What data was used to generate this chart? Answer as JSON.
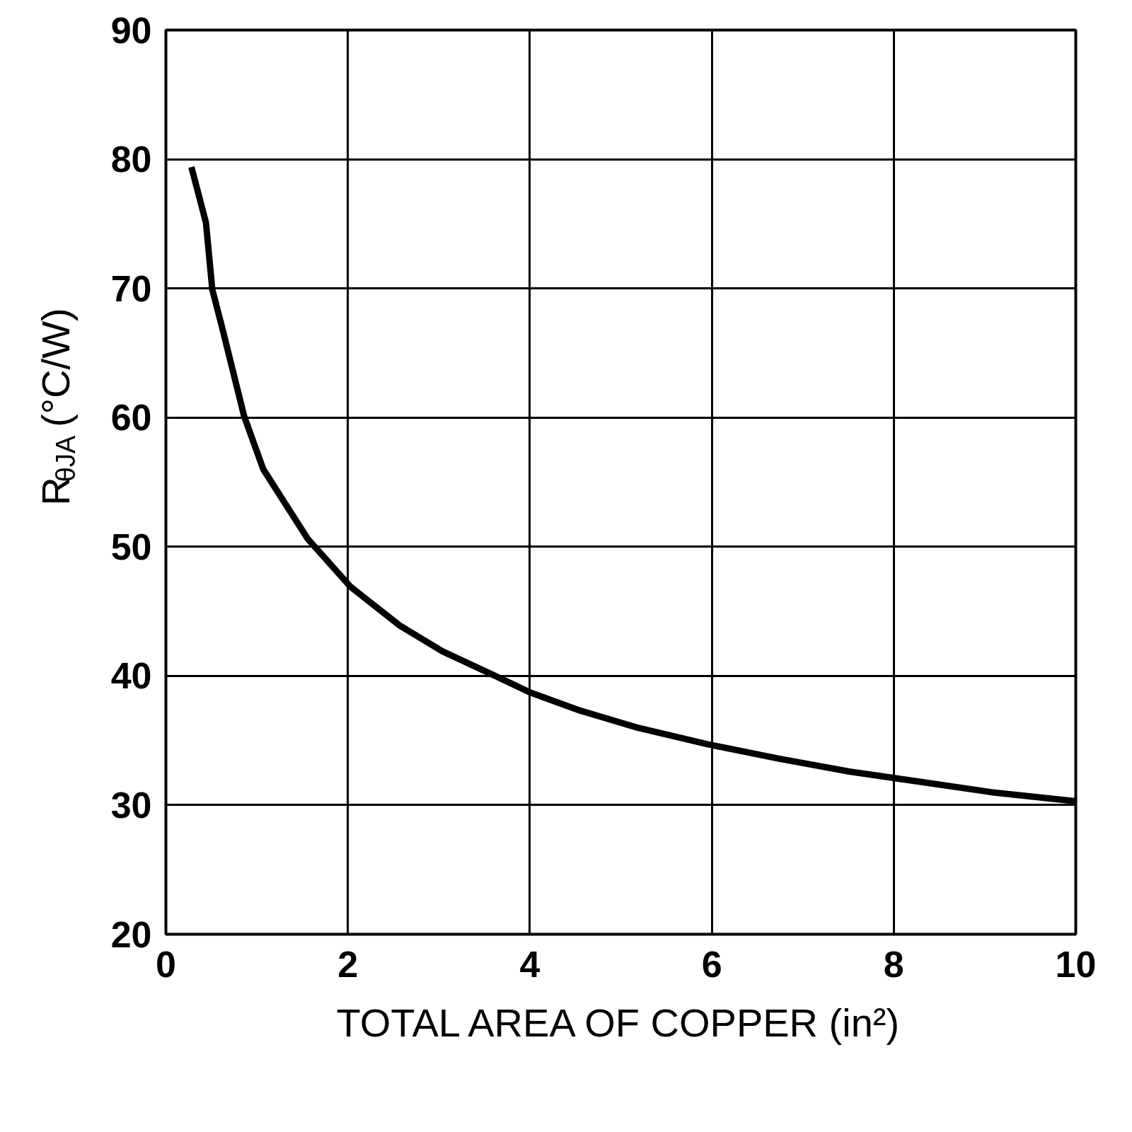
{
  "chart_data": {
    "type": "line",
    "xlabel": "TOTAL AREA OF COPPER (in²)",
    "ylabel": "R$_{θJA}$ (°C/W)",
    "x": [
      0.28,
      0.44,
      0.51,
      0.61,
      0.86,
      1.07,
      1.56,
      2.03,
      2.57,
      3.04,
      3.62,
      4.01,
      4.56,
      5.18,
      5.96,
      6.73,
      7.51,
      8.29,
      9.07,
      10.0
    ],
    "series": [
      {
        "color": "#000000",
        "values": [
          79.4,
          75.1,
          69.9,
          67.2,
          60.1,
          56.0,
          50.6,
          46.9,
          43.9,
          41.9,
          40.0,
          38.7,
          37.3,
          36.0,
          34.7,
          33.6,
          32.6,
          31.8,
          31.0,
          30.3
        ]
      }
    ],
    "xlim": [
      0,
      10
    ],
    "ylim": [
      20,
      90
    ],
    "xticks": [
      0,
      2,
      4,
      6,
      8,
      10
    ],
    "yticks": [
      20,
      30,
      40,
      50,
      60,
      70,
      80,
      90
    ],
    "grid": true,
    "marker": "none",
    "line_style": "solid"
  }
}
